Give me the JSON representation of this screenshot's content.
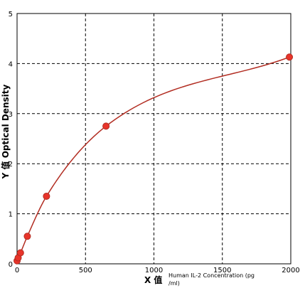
{
  "chart_data": {
    "type": "scatter",
    "title": "",
    "xlabel_main": "X 值",
    "xlabel_detail_line1": "Human IL-2 Concentration (pg",
    "xlabel_detail_line2": "/ml)",
    "ylabel": "Y 值  Optical Density",
    "xlim": [
      0,
      2000
    ],
    "ylim": [
      0,
      5
    ],
    "x_ticks": [
      0,
      500,
      1000,
      1500,
      2000
    ],
    "y_ticks": [
      0,
      1,
      2,
      3,
      4,
      5
    ],
    "grid": true,
    "grid_style": "dashed",
    "series": [
      {
        "x": [
          0,
          8,
          25,
          75,
          215,
          650,
          1990
        ],
        "y": [
          0.06,
          0.12,
          0.22,
          0.55,
          1.35,
          2.75,
          4.13
        ],
        "marker_color": "#e8342a",
        "line_color": "#b22d22"
      }
    ]
  }
}
